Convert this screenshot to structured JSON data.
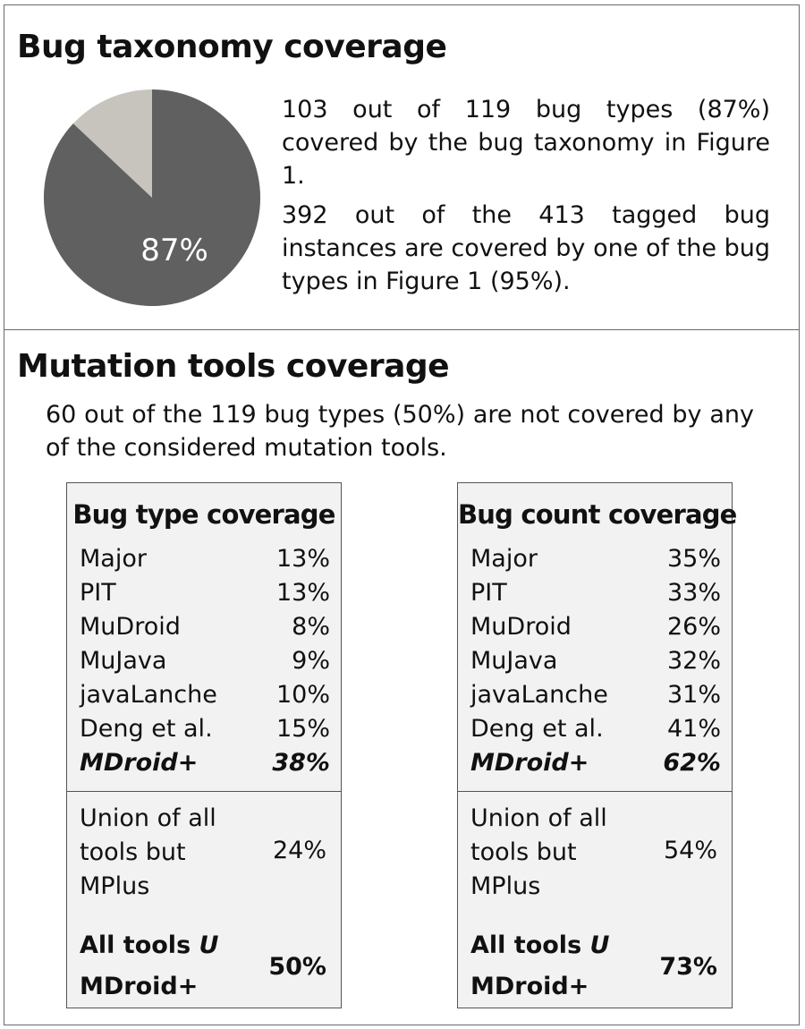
{
  "taxonomy": {
    "title": "Bug taxonomy coverage",
    "pie": {
      "covered_pct": 87,
      "label": "87%",
      "covered_color": "#606060",
      "uncovered_color": "#c6c4bd"
    },
    "para1": "103 out of 119 bug types (87%) covered by the bug taxonomy in Figure 1.",
    "para2": "392 out of the 413 tagged bug instances are covered by one of the bug types in Figure 1 (95%)."
  },
  "mutation": {
    "title": "Mutation tools coverage",
    "para": "60 out of the 119 bug types (50%) are not covered by any of the considered mutation tools.",
    "tables": [
      {
        "title": "Bug type coverage",
        "rows": [
          {
            "tool": "Major",
            "value": "13%"
          },
          {
            "tool": "PIT",
            "value": "13%"
          },
          {
            "tool": "MuDroid",
            "value": "8%"
          },
          {
            "tool": "MuJava",
            "value": "9%"
          },
          {
            "tool": "javaLanche",
            "value": "10%"
          },
          {
            "tool": "Deng et al.",
            "value": "15%"
          },
          {
            "tool": "MDroid+",
            "value": "38%"
          }
        ],
        "union_label_lines": [
          "Union of all",
          "tools but",
          "MPlus"
        ],
        "union_value": "24%",
        "all_label_line1": "All tools",
        "all_label_symbol": "U",
        "all_label_line2": "MDroid+",
        "all_value": "50%"
      },
      {
        "title": "Bug count coverage",
        "rows": [
          {
            "tool": "Major",
            "value": "35%"
          },
          {
            "tool": "PIT",
            "value": "33%"
          },
          {
            "tool": "MuDroid",
            "value": "26%"
          },
          {
            "tool": "MuJava",
            "value": "32%"
          },
          {
            "tool": "javaLanche",
            "value": "31%"
          },
          {
            "tool": "Deng et al.",
            "value": "41%"
          },
          {
            "tool": "MDroid+",
            "value": "62%"
          }
        ],
        "union_label_lines": [
          "Union of all",
          "tools but",
          "MPlus"
        ],
        "union_value": "54%",
        "all_label_line1": "All tools",
        "all_label_symbol": "U",
        "all_label_line2": "MDroid+",
        "all_value": "73%"
      }
    ]
  }
}
